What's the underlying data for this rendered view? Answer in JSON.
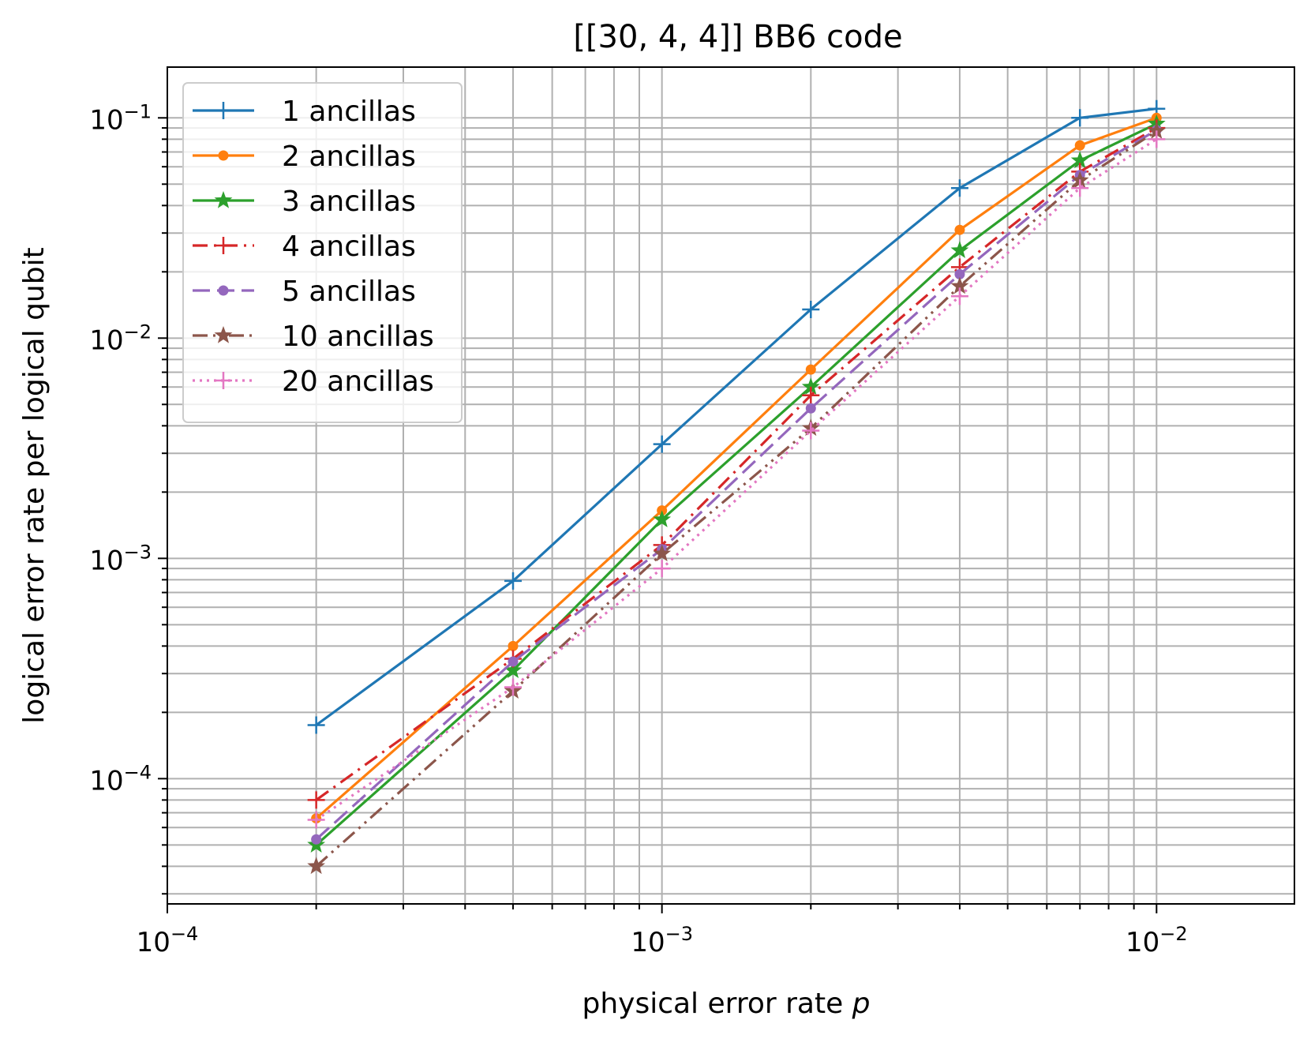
{
  "chart_data": {
    "type": "line",
    "title": "[[30, 4, 4]] BB6 code",
    "xlabel_prefix": "physical error rate ",
    "xlabel_var": "p",
    "ylabel": "logical error rate per logical qubit",
    "xscale": "log",
    "yscale": "log",
    "xlim": [
      0.0001,
      0.019
    ],
    "ylim": [
      2.7e-05,
      0.17
    ],
    "grid": "both major and minor",
    "legend_position": "upper-left",
    "xticks": [
      {
        "value": 0.0001,
        "base": "10",
        "exp": "−4"
      },
      {
        "value": 0.001,
        "base": "10",
        "exp": "−3"
      },
      {
        "value": 0.01,
        "base": "10",
        "exp": "−2"
      }
    ],
    "yticks": [
      {
        "value": 0.0001,
        "base": "10",
        "exp": "−4"
      },
      {
        "value": 0.001,
        "base": "10",
        "exp": "−3"
      },
      {
        "value": 0.01,
        "base": "10",
        "exp": "−2"
      },
      {
        "value": 0.1,
        "base": "10",
        "exp": "−1"
      }
    ],
    "x": [
      0.0002,
      0.0005,
      0.001,
      0.002,
      0.004,
      0.007,
      0.01
    ],
    "series": [
      {
        "name": "1 ancillas",
        "color": "#1f77b4",
        "marker": "plus",
        "dash": "solid",
        "values": [
          0.000175,
          0.00079,
          0.0033,
          0.0135,
          0.048,
          0.1,
          0.11
        ]
      },
      {
        "name": "2 ancillas",
        "color": "#ff7f0e",
        "marker": "dot",
        "dash": "solid",
        "values": [
          6.6e-05,
          0.0004,
          0.00165,
          0.0072,
          0.031,
          0.075,
          0.1
        ]
      },
      {
        "name": "3 ancillas",
        "color": "#2ca02c",
        "marker": "star",
        "dash": "solid",
        "values": [
          5e-05,
          0.00031,
          0.0015,
          0.006,
          0.025,
          0.064,
          0.094
        ]
      },
      {
        "name": "4 ancillas",
        "color": "#d62728",
        "marker": "plus",
        "dash": "dashdot",
        "values": [
          8e-05,
          0.00035,
          0.00115,
          0.0055,
          0.021,
          0.057,
          0.09
        ]
      },
      {
        "name": "5 ancillas",
        "color": "#9467bd",
        "marker": "dot",
        "dash": "dashed",
        "values": [
          5.3e-05,
          0.00034,
          0.0011,
          0.0048,
          0.0195,
          0.055,
          0.088
        ]
      },
      {
        "name": "10 ancillas",
        "color": "#8c564b",
        "marker": "star",
        "dash": "dashdotdot",
        "values": [
          4e-05,
          0.00025,
          0.00105,
          0.0039,
          0.0172,
          0.052,
          0.087
        ]
      },
      {
        "name": "20 ancillas",
        "color": "#e377c2",
        "marker": "plus",
        "dash": "dotted",
        "values": [
          6.5e-05,
          0.00026,
          0.0009,
          0.0038,
          0.0155,
          0.048,
          0.08
        ]
      }
    ]
  }
}
